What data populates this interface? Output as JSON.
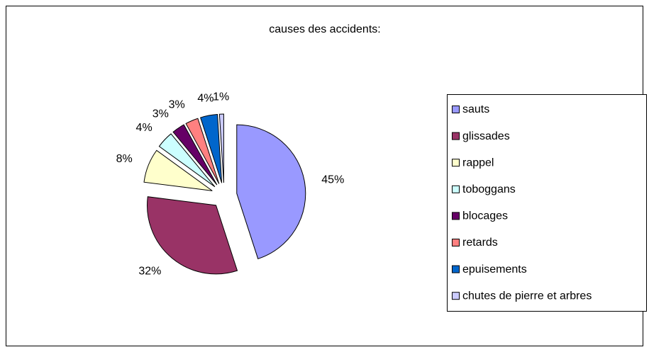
{
  "chart_data": {
    "type": "pie",
    "title": "causes des accidents:",
    "categories": [
      "sauts",
      "glissades",
      "rappel",
      "toboggans",
      "blocages",
      "retards",
      "epuisements",
      "chutes de pierre et arbres"
    ],
    "values": [
      45,
      32,
      8,
      4,
      3,
      3,
      4,
      1
    ],
    "value_labels": [
      "45%",
      "32%",
      "8%",
      "4%",
      "3%",
      "3%",
      "4%",
      "1%"
    ],
    "colors": [
      "#9999FF",
      "#993366",
      "#FFFFCC",
      "#CCFFFF",
      "#660066",
      "#FF8080",
      "#0066CC",
      "#CCCCFF"
    ],
    "legend": "right",
    "exploded": true
  }
}
